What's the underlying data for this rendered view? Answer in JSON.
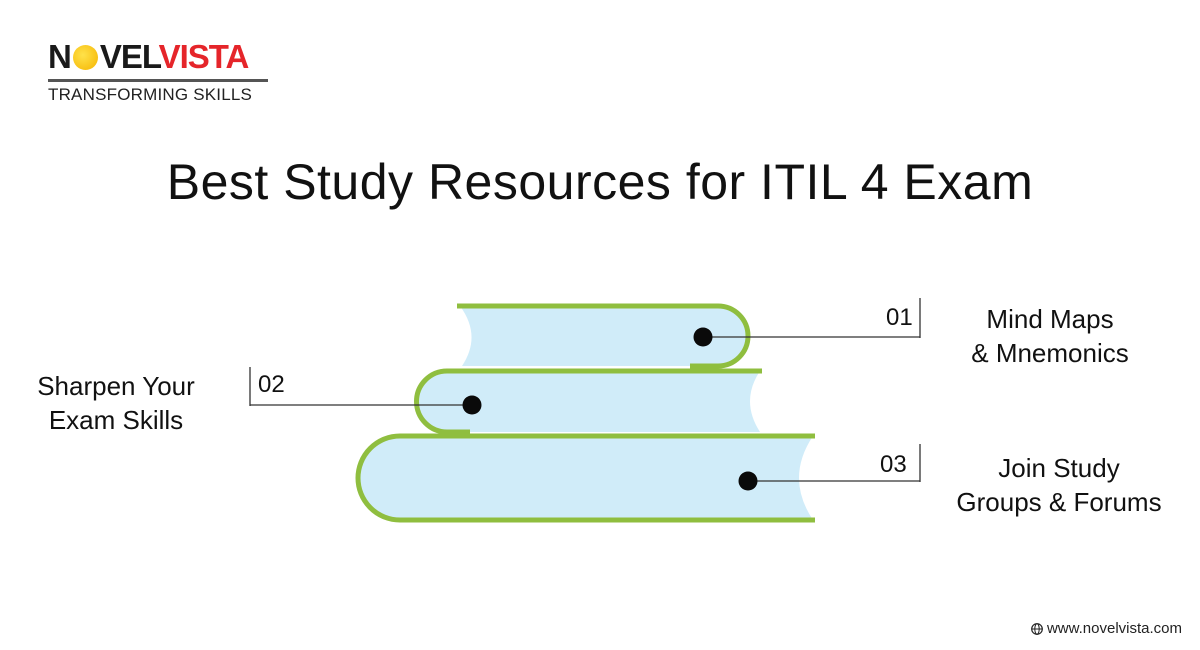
{
  "logo": {
    "brand_dark_1": "N",
    "brand_dark_2": "VEL",
    "brand_red": "VISTA",
    "tagline": "TRANSFORMING SKILLS"
  },
  "title": "Best Study Resources for ITIL 4 Exam",
  "items": [
    {
      "number": "01",
      "line1": "Mind Maps",
      "line2": "& Mnemonics"
    },
    {
      "number": "02",
      "line1": "Sharpen Your",
      "line2": "Exam Skills"
    },
    {
      "number": "03",
      "line1": "Join Study",
      "line2": "Groups & Forums"
    }
  ],
  "footer": {
    "url": "www.novelvista.com",
    "icon": "globe-icon"
  },
  "colors": {
    "book_fill": "#d0ecf9",
    "book_stroke": "#8fbe3f",
    "brand_red": "#e5252a"
  }
}
